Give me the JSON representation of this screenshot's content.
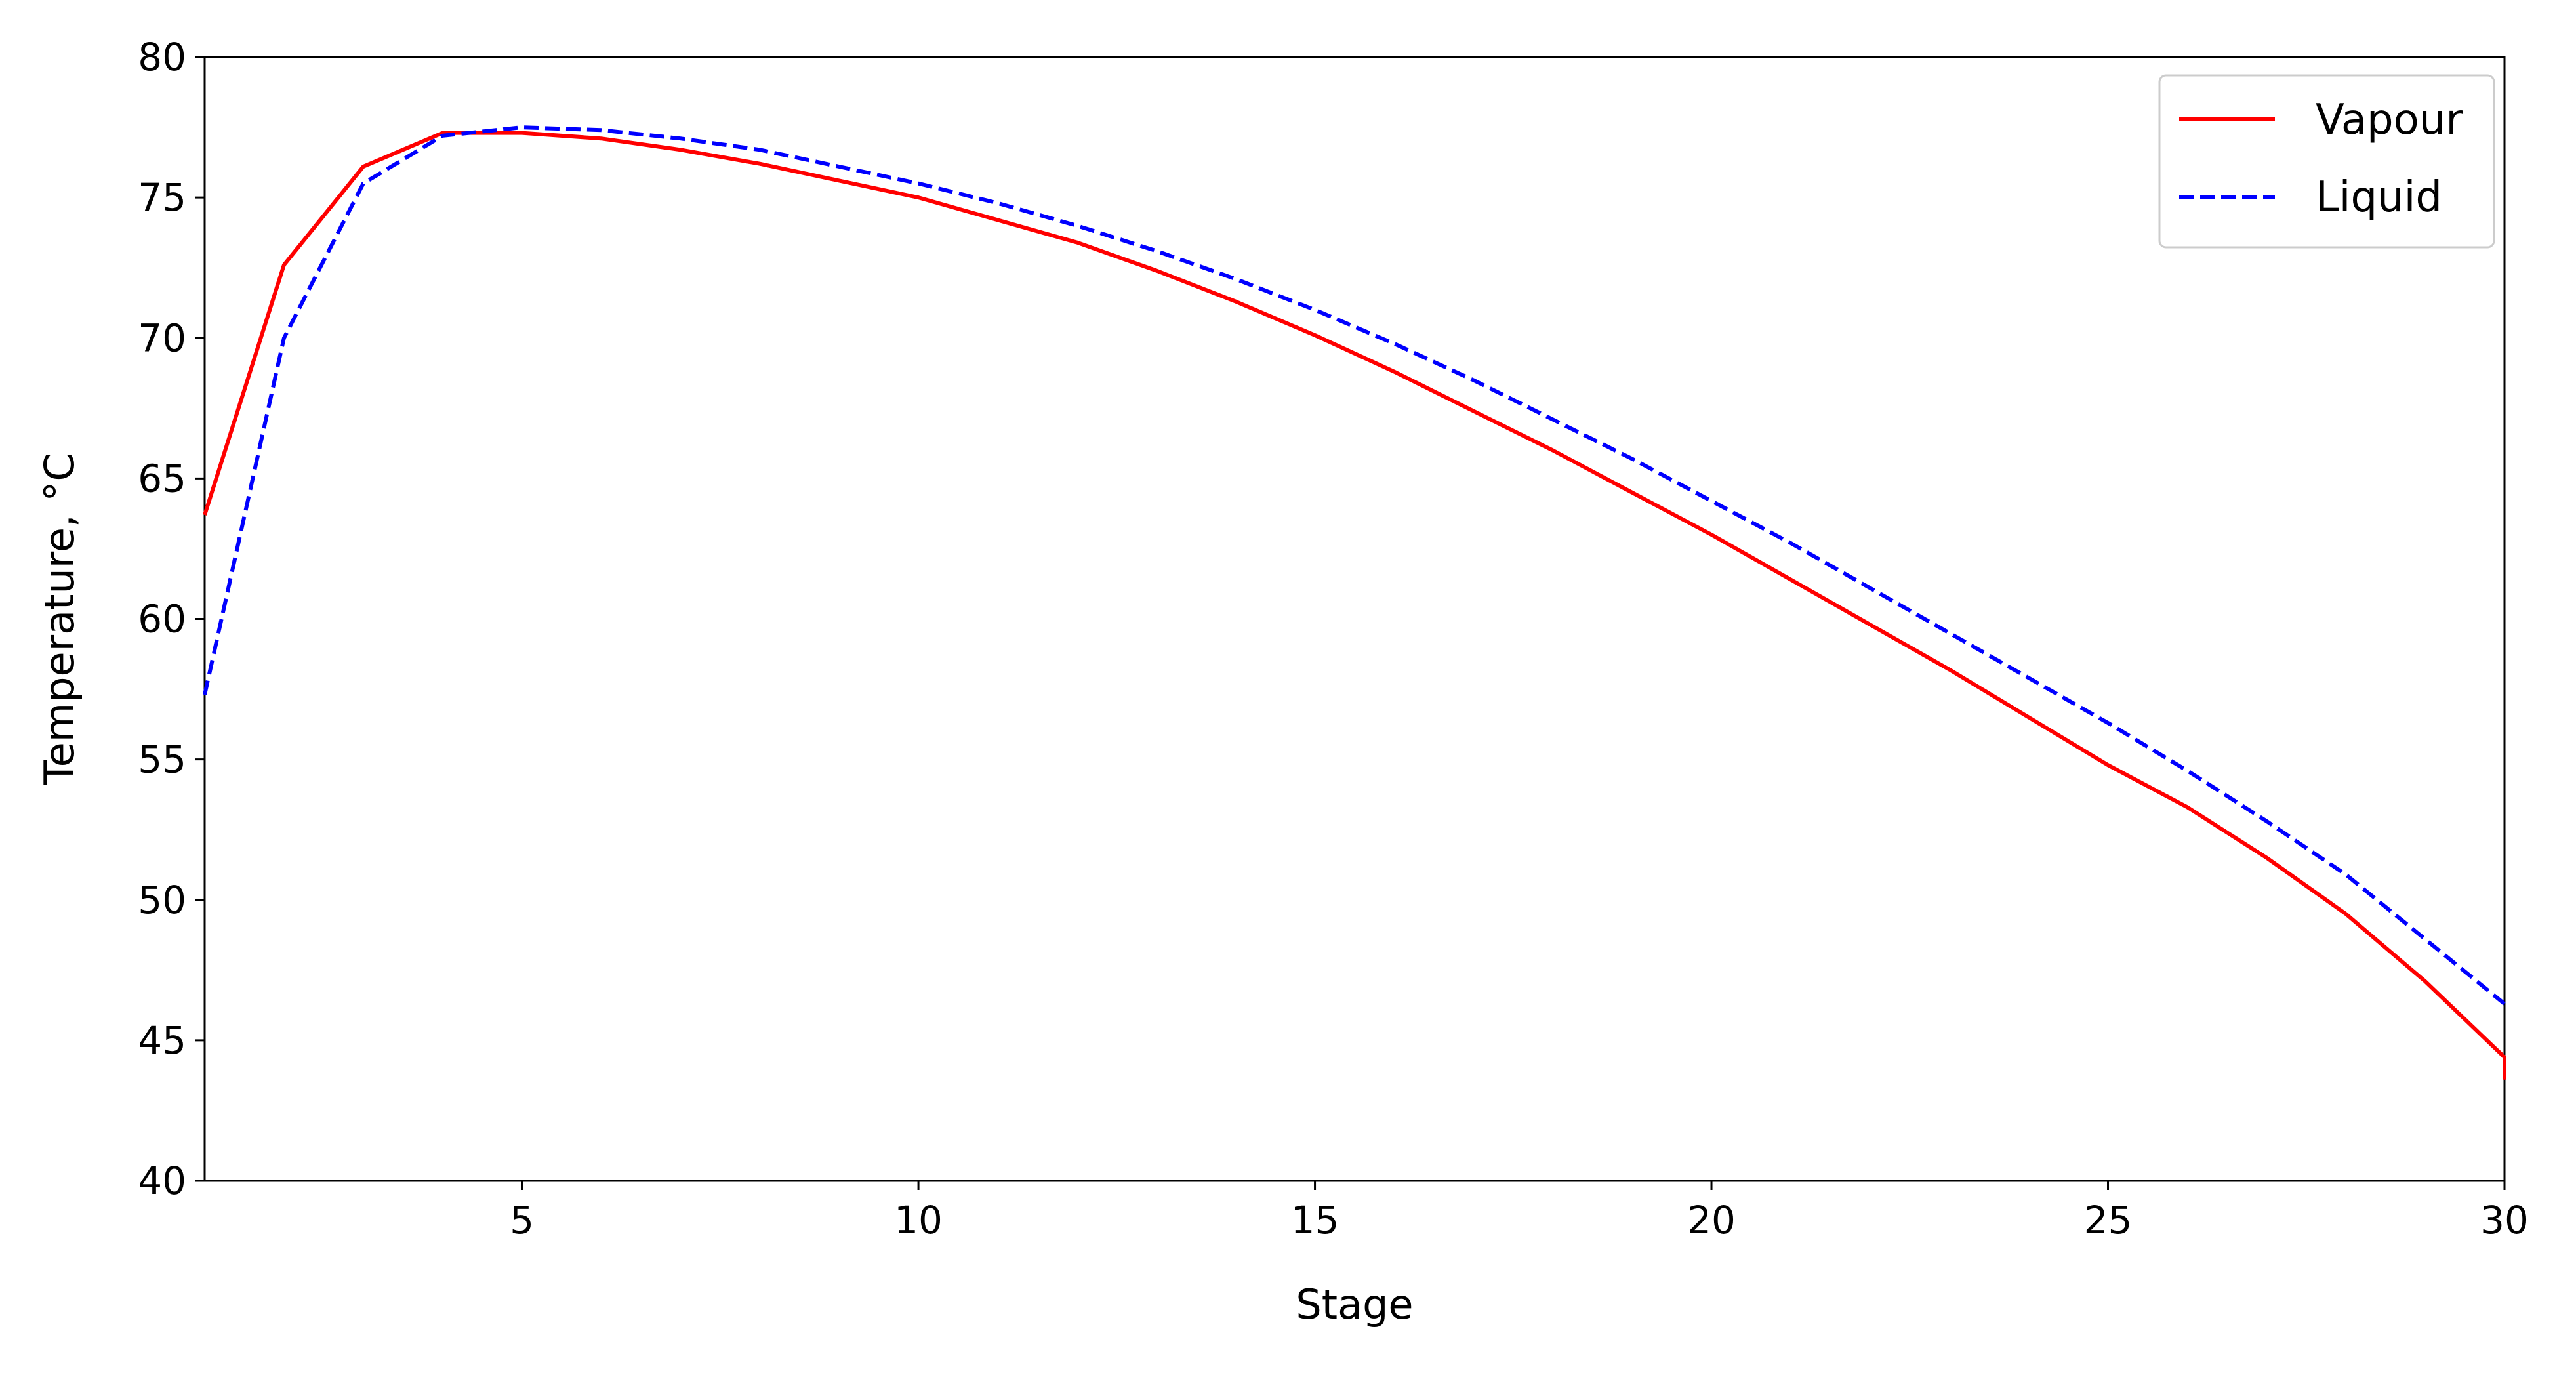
{
  "chart_data": {
    "type": "line",
    "title": "",
    "xlabel": "Stage",
    "ylabel": "Temperature, °C",
    "xlim": [
      1,
      30
    ],
    "ylim": [
      40,
      80
    ],
    "xticks": [
      5,
      10,
      15,
      20,
      25,
      30
    ],
    "yticks": [
      40,
      45,
      50,
      55,
      60,
      65,
      70,
      75,
      80
    ],
    "grid": false,
    "legend_position": "top-right",
    "series": [
      {
        "name": "Vapour",
        "color": "#ff0000",
        "style": "solid",
        "x": [
          1,
          2,
          3,
          4,
          5,
          6,
          7,
          8,
          9,
          10,
          11,
          12,
          13,
          14,
          15,
          16,
          17,
          18,
          19,
          20,
          21,
          22,
          23,
          24,
          25,
          26,
          27,
          28,
          29,
          30,
          30
        ],
        "y": [
          63.7,
          72.6,
          76.1,
          77.3,
          77.3,
          77.1,
          76.7,
          76.2,
          75.6,
          75.0,
          74.2,
          73.4,
          72.4,
          71.3,
          70.1,
          68.8,
          67.4,
          66.0,
          64.5,
          63.0,
          61.4,
          59.8,
          58.2,
          56.5,
          54.8,
          53.3,
          51.5,
          49.5,
          47.1,
          44.4,
          43.6
        ]
      },
      {
        "name": "Liquid",
        "color": "#0000ff",
        "style": "dashed",
        "x": [
          1,
          2,
          3,
          4,
          5,
          6,
          7,
          8,
          9,
          10,
          11,
          12,
          13,
          14,
          15,
          16,
          17,
          18,
          19,
          20,
          21,
          22,
          23,
          24,
          25,
          26,
          27,
          28,
          29,
          30
        ],
        "y": [
          57.3,
          70.0,
          75.5,
          77.2,
          77.5,
          77.4,
          77.1,
          76.7,
          76.1,
          75.5,
          74.8,
          74.0,
          73.1,
          72.1,
          71.0,
          69.8,
          68.5,
          67.1,
          65.7,
          64.2,
          62.7,
          61.1,
          59.5,
          57.9,
          56.3,
          54.6,
          52.8,
          50.9,
          48.6,
          46.3
        ]
      }
    ]
  }
}
